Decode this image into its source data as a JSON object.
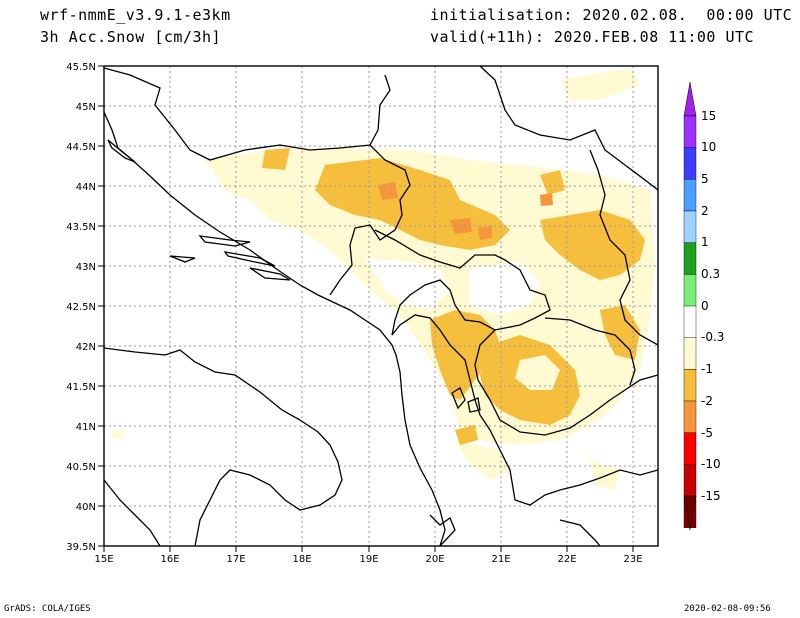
{
  "header": {
    "model": "wrf-nmmE_v3.9.1-e3km",
    "variable": "3h Acc.Snow [cm/3h]",
    "initialisation": "initialisation: 2020.02.08.  00:00 UTC",
    "valid": "valid(+11h): 2020.FEB.08 11:00 UTC"
  },
  "map": {
    "lat_labels": [
      "45.5N",
      "45N",
      "44.5N",
      "44N",
      "43.5N",
      "43N",
      "42.5N",
      "42N",
      "41.5N",
      "41N",
      "40.5N",
      "40N",
      "39.5N"
    ],
    "lon_labels": [
      "15E",
      "16E",
      "17E",
      "18E",
      "19E",
      "20E",
      "21E",
      "22E",
      "23E"
    ]
  },
  "colorbar": {
    "labels": [
      "15",
      "10",
      "5",
      "2",
      "1",
      "0.3",
      "0",
      "-0.3",
      "-1",
      "-2",
      "-5",
      "-10",
      "-15"
    ],
    "colors": [
      "#9b30ff",
      "#3c3cff",
      "#4aa0ff",
      "#a0d2ff",
      "#1ea01e",
      "#78f078",
      "#ffffff",
      "#fffad2",
      "#f5be3c",
      "#f5963c",
      "#ff0000",
      "#c80000",
      "#820000"
    ],
    "top_arrow_color": "#a020f0",
    "bottom_arrow_color": "#6e0000"
  },
  "footer": {
    "left": "GrADS: COLA/IGES",
    "right": "2020-02-08-09:56"
  }
}
